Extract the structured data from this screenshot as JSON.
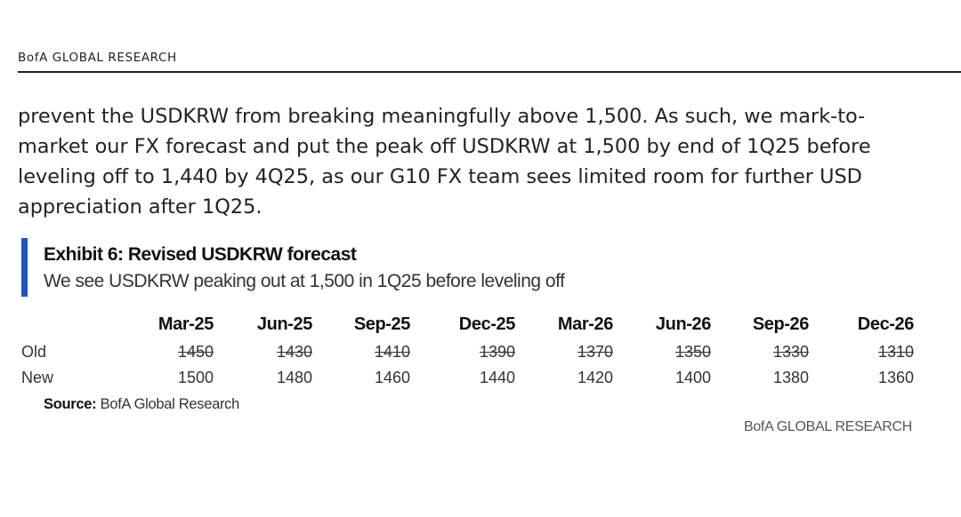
{
  "header": {
    "label": "BofA GLOBAL RESEARCH"
  },
  "body_text": {
    "lines": [
      "prevent the USDKRW from breaking meaningfully above 1,500. As such, we mark-to-",
      "market our FX forecast and put the peak off USDKRW at 1,500 by end of 1Q25 before",
      "leveling off to 1,440 by 4Q25, as our G10 FX team sees limited room for further USD",
      "appreciation after 1Q25."
    ]
  },
  "exhibit": {
    "title": "Exhibit 6: Revised USDKRW forecast",
    "subtitle": "We see USDKRW peaking out at 1,500 in 1Q25 before leveling off",
    "accent_color": "#1a54c8"
  },
  "table": {
    "columns": [
      "Mar-25",
      "Jun-25",
      "Sep-25",
      "Dec-25",
      "Mar-26",
      "Jun-26",
      "Sep-26",
      "Dec-26"
    ],
    "rows": [
      {
        "label": "Old",
        "values": [
          "1450",
          "1430",
          "1410",
          "1390",
          "1370",
          "1350",
          "1330",
          "1310"
        ],
        "struck": true
      },
      {
        "label": "New",
        "values": [
          "1500",
          "1480",
          "1460",
          "1440",
          "1420",
          "1400",
          "1380",
          "1360"
        ],
        "struck": false
      }
    ]
  },
  "source": {
    "label": "Source:",
    "text": "BofA Global Research"
  },
  "footer": {
    "brand": "BofA GLOBAL RESEARCH"
  }
}
